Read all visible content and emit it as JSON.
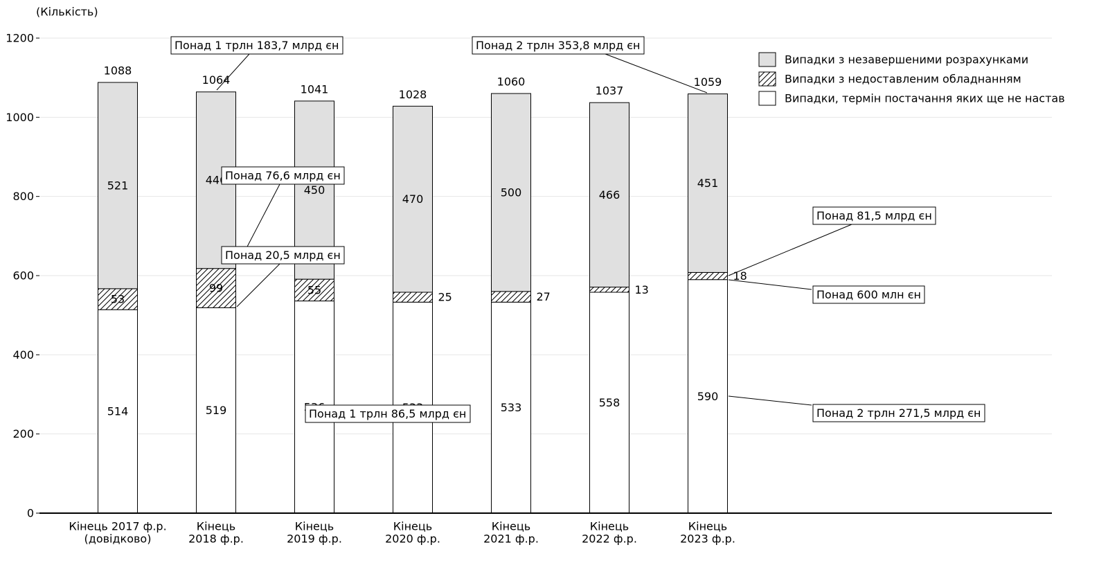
{
  "chart_data": {
    "type": "bar",
    "stacked": true,
    "y_unit": "(Кількість)",
    "ylim": [
      0,
      1200
    ],
    "yticks": [
      0,
      200,
      400,
      600,
      800,
      1000,
      1200
    ],
    "grid": true,
    "legend_position": "top-right",
    "categories": [
      [
        "Кінець 2017 ф.р.",
        "(довідково)"
      ],
      [
        "Кінець",
        "2018 ф.р."
      ],
      [
        "Кінець",
        "2019 ф.р."
      ],
      [
        "Кінець",
        "2020 ф.р."
      ],
      [
        "Кінець",
        "2021 ф.р."
      ],
      [
        "Кінець",
        "2022 ф.р."
      ],
      [
        "Кінець",
        "2023 ф.р."
      ]
    ],
    "totals": [
      1088,
      1064,
      1041,
      1028,
      1060,
      1037,
      1059
    ],
    "series": [
      {
        "name": "Випадки, термін постачання яких ще не настав",
        "values": [
          514,
          519,
          536,
          533,
          533,
          558,
          590
        ],
        "fill": "#ffffff",
        "pattern": "none",
        "label_position": "inside"
      },
      {
        "name": "Випадки з недоставленим обладнанням",
        "values": [
          53,
          99,
          55,
          25,
          27,
          13,
          18
        ],
        "fill": "#ffffff",
        "pattern": "hatch",
        "label_position": [
          "inside",
          "inside",
          "inside",
          "right",
          "right",
          "right",
          "right"
        ]
      },
      {
        "name": "Випадки з незавершеними розрахунками",
        "values": [
          521,
          446,
          450,
          470,
          500,
          466,
          451
        ],
        "fill": "#e0e0e0",
        "pattern": "none",
        "label_position": "inside"
      }
    ],
    "annotations": [
      {
        "text": "Понад 1 трлн 183,7 млрд єн",
        "bar": 1,
        "y_value": 1064
      },
      {
        "text": "Понад 76,6 млрд єн",
        "bar": 1,
        "y_value": 680
      },
      {
        "text": "Понад 20,5 млрд єн",
        "bar": 1,
        "y_value": 519
      },
      {
        "text": "Понад 1 трлн 86,5 млрд єн",
        "bar": 2,
        "y_value": 260
      },
      {
        "text": "Понад 2 трлн 353,8 млрд єн",
        "bar": 6,
        "y_value": 1059
      },
      {
        "text": "Понад 81,5 млрд єн",
        "bar": 6,
        "y_value": 599
      },
      {
        "text": "Понад 600 млн єн",
        "bar": 6,
        "y_value": 590
      },
      {
        "text": "Понад 2 трлн 271,5 млрд єн",
        "bar": 6,
        "y_value": 295
      }
    ],
    "colors": {
      "axis": "#000000",
      "grid": "#e6e6e6",
      "bar_stroke": "#000000",
      "gray_segment": "#e0e0e0"
    }
  }
}
